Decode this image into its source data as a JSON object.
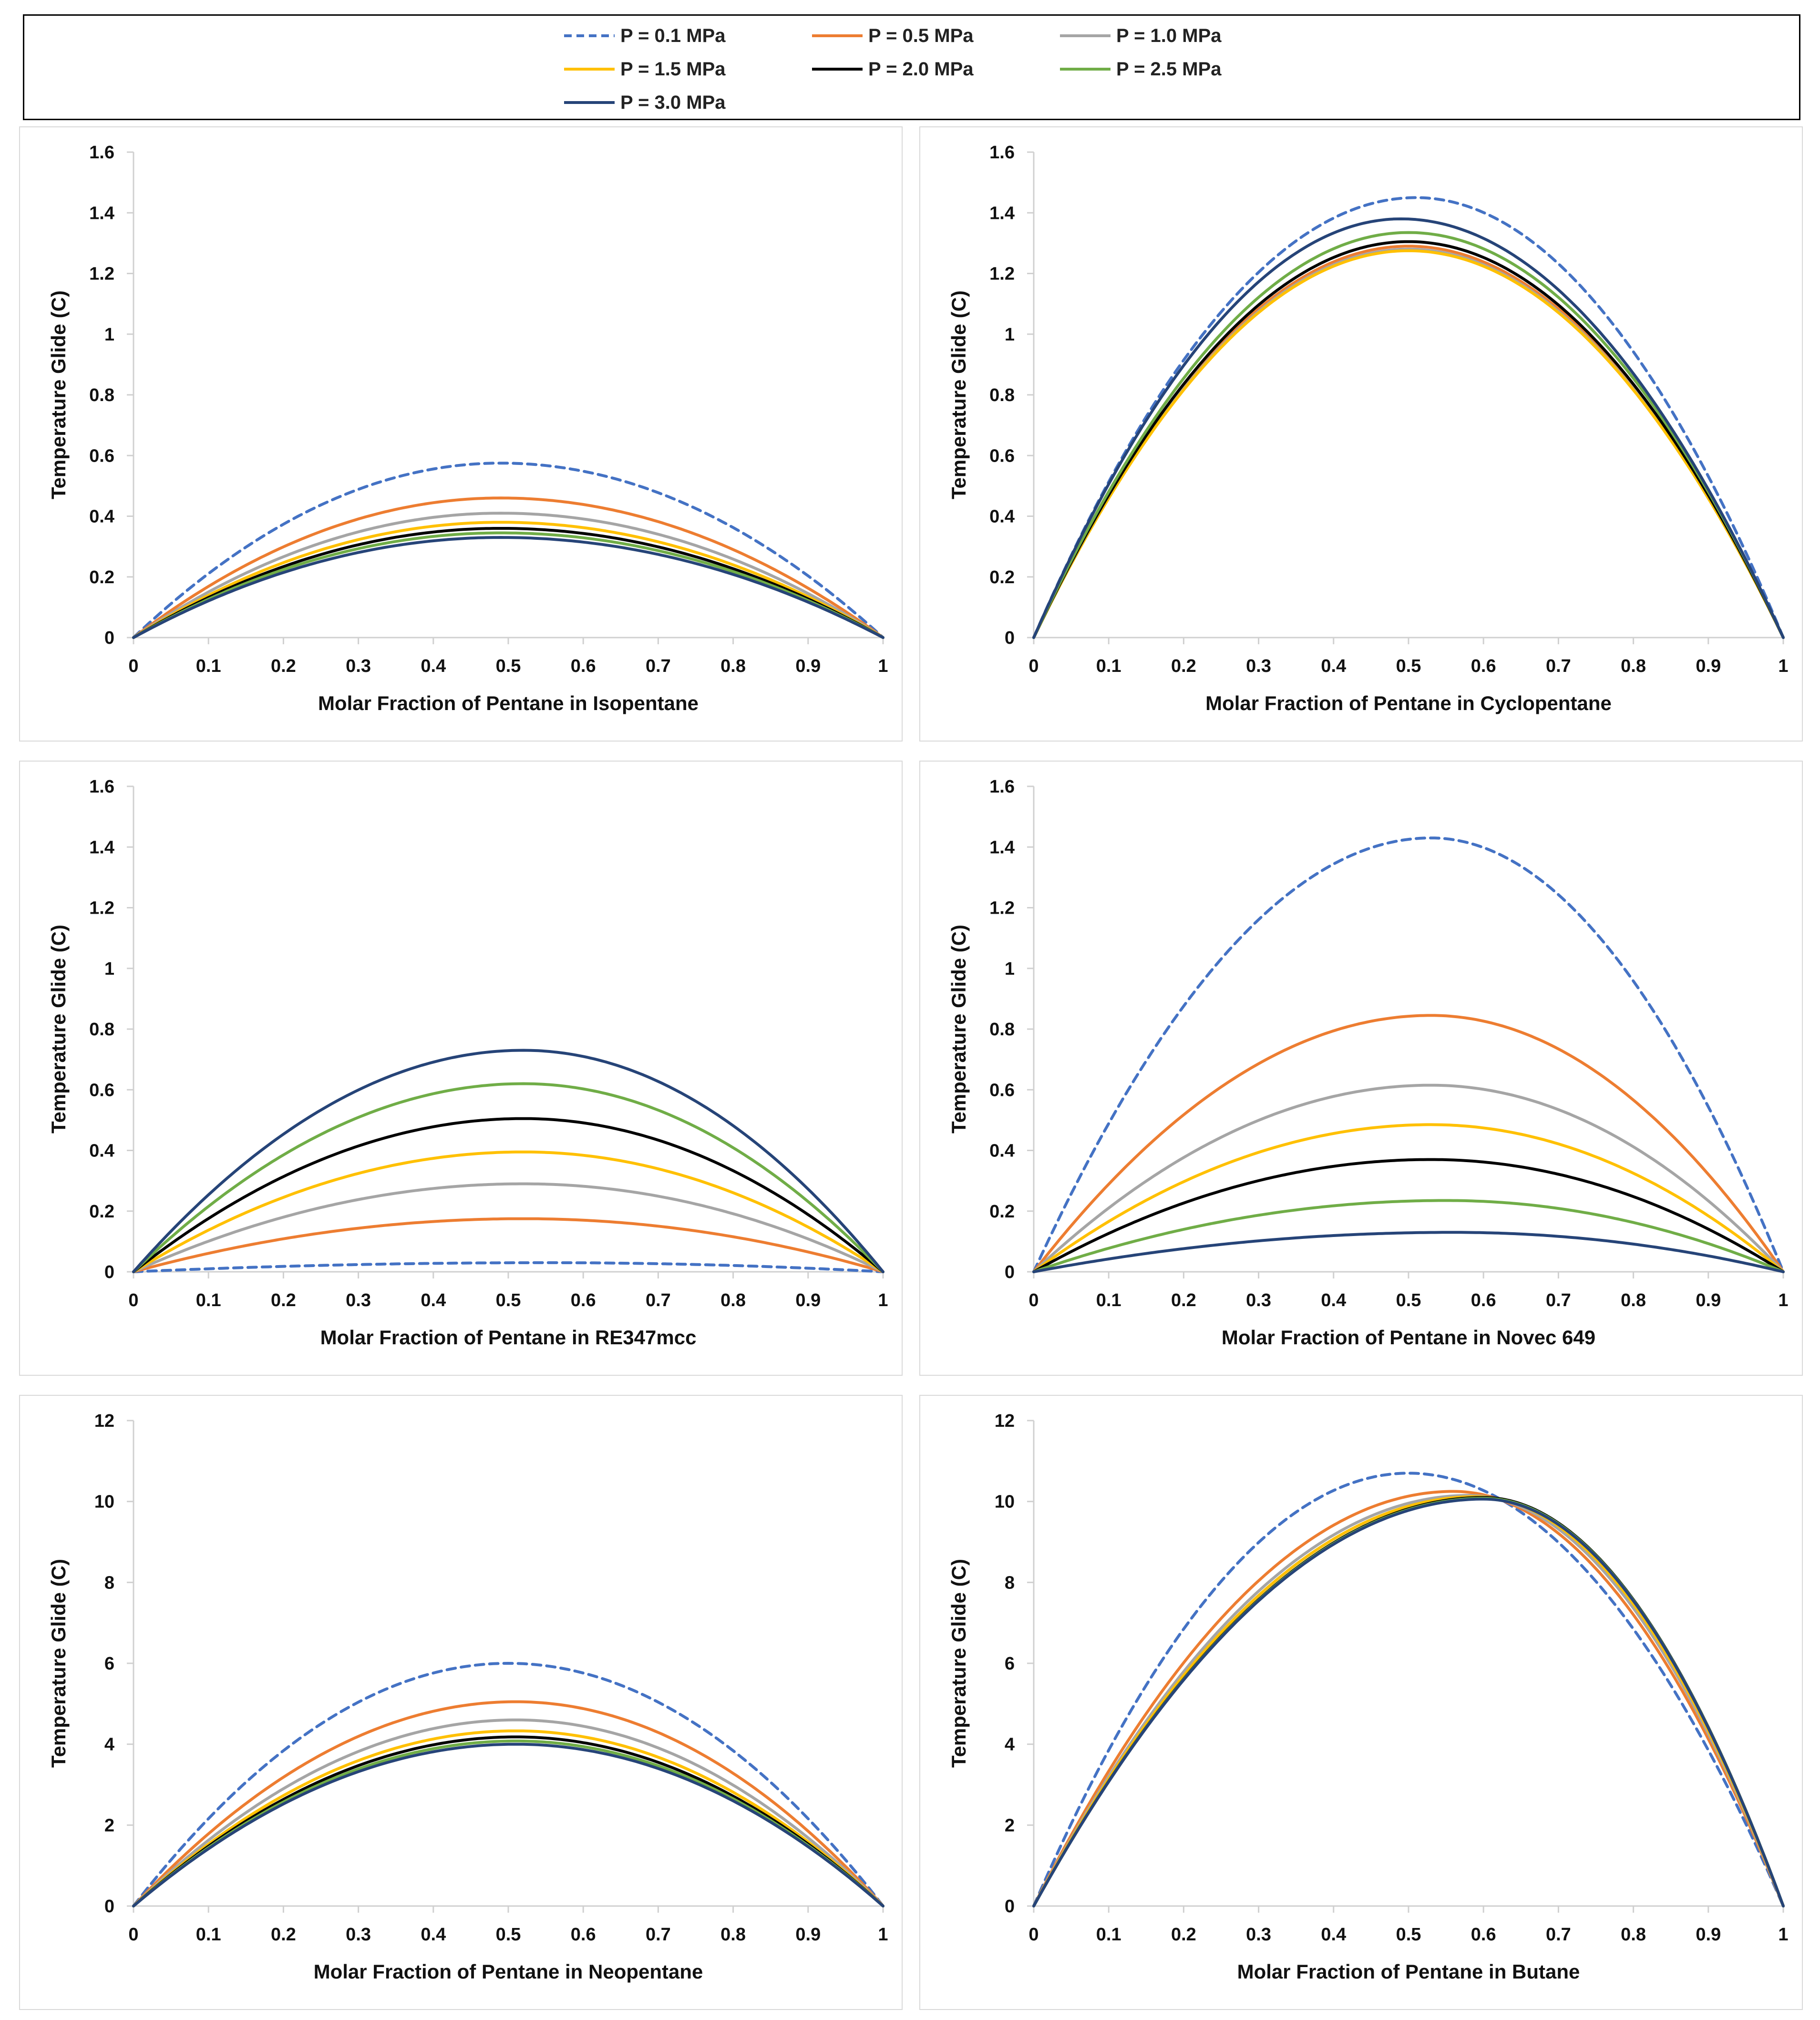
{
  "legend": {
    "items": [
      {
        "label": "P = 0.1 MPa",
        "color": "#4472C4",
        "dashed": true
      },
      {
        "label": "P = 0.5 MPa",
        "color": "#ED7D31",
        "dashed": false
      },
      {
        "label": "P = 1.0 MPa",
        "color": "#A5A5A5",
        "dashed": false
      },
      {
        "label": "P = 1.5 MPa",
        "color": "#FFC000",
        "dashed": false
      },
      {
        "label": "P = 2.0 MPa",
        "color": "#000000",
        "dashed": false
      },
      {
        "label": "P = 2.5 MPa",
        "color": "#70AD47",
        "dashed": false
      },
      {
        "label": "P = 3.0 MPa",
        "color": "#264478",
        "dashed": false
      }
    ]
  },
  "chart_data": [
    {
      "type": "line",
      "xlabel": "Molar Fraction of Pentane in Isopentane",
      "ylabel": "Temperature Glide (C)",
      "xlim": [
        0,
        1
      ],
      "ylim": [
        0,
        1.6
      ],
      "xticks": [
        "0",
        "0.1",
        "0.2",
        "0.3",
        "0.4",
        "0.5",
        "0.6",
        "0.7",
        "0.8",
        "0.9",
        "1"
      ],
      "yticks": [
        "0",
        "0.2",
        "0.4",
        "0.6",
        "0.8",
        "1",
        "1.2",
        "1.4",
        "1.6"
      ],
      "series": [
        {
          "name": "P = 0.1 MPa",
          "peak_x": 0.49,
          "peak_y": 0.575
        },
        {
          "name": "P = 0.5 MPa",
          "peak_x": 0.49,
          "peak_y": 0.46
        },
        {
          "name": "P = 1.0 MPa",
          "peak_x": 0.49,
          "peak_y": 0.41
        },
        {
          "name": "P = 1.5 MPa",
          "peak_x": 0.49,
          "peak_y": 0.38
        },
        {
          "name": "P = 2.0 MPa",
          "peak_x": 0.49,
          "peak_y": 0.36
        },
        {
          "name": "P = 2.5 MPa",
          "peak_x": 0.49,
          "peak_y": 0.345
        },
        {
          "name": "P = 3.0 MPa",
          "peak_x": 0.49,
          "peak_y": 0.33
        }
      ]
    },
    {
      "type": "line",
      "xlabel": "Molar Fraction of Pentane in Cyclopentane",
      "ylabel": "Temperature Glide (C)",
      "xlim": [
        0,
        1
      ],
      "ylim": [
        0,
        1.6
      ],
      "xticks": [
        "0",
        "0.1",
        "0.2",
        "0.3",
        "0.4",
        "0.5",
        "0.6",
        "0.7",
        "0.8",
        "0.9",
        "1"
      ],
      "yticks": [
        "0",
        "0.2",
        "0.4",
        "0.6",
        "0.8",
        "1",
        "1.2",
        "1.4",
        "1.6"
      ],
      "series": [
        {
          "name": "P = 0.1 MPa",
          "peak_x": 0.51,
          "peak_y": 1.45
        },
        {
          "name": "P = 0.5 MPa",
          "peak_x": 0.5,
          "peak_y": 1.29
        },
        {
          "name": "P = 1.0 MPa",
          "peak_x": 0.5,
          "peak_y": 1.28
        },
        {
          "name": "P = 1.5 MPa",
          "peak_x": 0.5,
          "peak_y": 1.275
        },
        {
          "name": "P = 2.0 MPa",
          "peak_x": 0.5,
          "peak_y": 1.305
        },
        {
          "name": "P = 2.5 MPa",
          "peak_x": 0.5,
          "peak_y": 1.335
        },
        {
          "name": "P = 3.0 MPa",
          "peak_x": 0.49,
          "peak_y": 1.38
        }
      ]
    },
    {
      "type": "line",
      "xlabel": "Molar Fraction of Pentane in RE347mcc",
      "ylabel": "Temperature Glide (C)",
      "xlim": [
        0,
        1
      ],
      "ylim": [
        0,
        1.6
      ],
      "xticks": [
        "0",
        "0.1",
        "0.2",
        "0.3",
        "0.4",
        "0.5",
        "0.6",
        "0.7",
        "0.8",
        "0.9",
        "1"
      ],
      "yticks": [
        "0",
        "0.2",
        "0.4",
        "0.6",
        "0.8",
        "1",
        "1.2",
        "1.4",
        "1.6"
      ],
      "series": [
        {
          "name": "P = 0.1 MPa",
          "peak_x": 0.55,
          "peak_y": 0.03
        },
        {
          "name": "P = 0.5 MPa",
          "peak_x": 0.52,
          "peak_y": 0.175
        },
        {
          "name": "P = 1.0 MPa",
          "peak_x": 0.52,
          "peak_y": 0.29
        },
        {
          "name": "P = 1.5 MPa",
          "peak_x": 0.52,
          "peak_y": 0.395
        },
        {
          "name": "P = 2.0 MPa",
          "peak_x": 0.52,
          "peak_y": 0.505
        },
        {
          "name": "P = 2.5 MPa",
          "peak_x": 0.52,
          "peak_y": 0.62
        },
        {
          "name": "P = 3.0 MPa",
          "peak_x": 0.52,
          "peak_y": 0.73
        }
      ]
    },
    {
      "type": "line",
      "xlabel": "Molar Fraction of Pentane in Novec 649",
      "ylabel": "Temperature Glide (C)",
      "xlim": [
        0,
        1
      ],
      "ylim": [
        0,
        1.6
      ],
      "xticks": [
        "0",
        "0.1",
        "0.2",
        "0.3",
        "0.4",
        "0.5",
        "0.6",
        "0.7",
        "0.8",
        "0.9",
        "1"
      ],
      "yticks": [
        "0",
        "0.2",
        "0.4",
        "0.6",
        "0.8",
        "1",
        "1.2",
        "1.4",
        "1.6"
      ],
      "series": [
        {
          "name": "P = 0.1 MPa",
          "peak_x": 0.53,
          "peak_y": 1.43
        },
        {
          "name": "P = 0.5 MPa",
          "peak_x": 0.53,
          "peak_y": 0.845
        },
        {
          "name": "P = 1.0 MPa",
          "peak_x": 0.53,
          "peak_y": 0.615
        },
        {
          "name": "P = 1.5 MPa",
          "peak_x": 0.53,
          "peak_y": 0.485
        },
        {
          "name": "P = 2.0 MPa",
          "peak_x": 0.53,
          "peak_y": 0.37
        },
        {
          "name": "P = 2.5 MPa",
          "peak_x": 0.55,
          "peak_y": 0.235
        },
        {
          "name": "P = 3.0 MPa",
          "peak_x": 0.56,
          "peak_y": 0.13
        }
      ]
    },
    {
      "type": "line",
      "xlabel": "Molar Fraction of Pentane in Neopentane",
      "ylabel": "Temperature Glide (C)",
      "xlim": [
        0,
        1
      ],
      "ylim": [
        0,
        12
      ],
      "xticks": [
        "0",
        "0.1",
        "0.2",
        "0.3",
        "0.4",
        "0.5",
        "0.6",
        "0.7",
        "0.8",
        "0.9",
        "1"
      ],
      "yticks": [
        "0",
        "2",
        "4",
        "6",
        "8",
        "10",
        "12"
      ],
      "series": [
        {
          "name": "P = 0.1 MPa",
          "peak_x": 0.5,
          "peak_y": 6.0
        },
        {
          "name": "P = 0.5 MPa",
          "peak_x": 0.51,
          "peak_y": 5.05
        },
        {
          "name": "P = 1.0 MPa",
          "peak_x": 0.51,
          "peak_y": 4.6
        },
        {
          "name": "P = 1.5 MPa",
          "peak_x": 0.51,
          "peak_y": 4.33
        },
        {
          "name": "P = 2.0 MPa",
          "peak_x": 0.51,
          "peak_y": 4.18
        },
        {
          "name": "P = 2.5 MPa",
          "peak_x": 0.51,
          "peak_y": 4.08
        },
        {
          "name": "P = 3.0 MPa",
          "peak_x": 0.51,
          "peak_y": 4.0
        }
      ]
    },
    {
      "type": "line",
      "xlabel": "Molar Fraction of Pentane in Butane",
      "ylabel": "Temperature Glide (C)",
      "xlim": [
        0,
        1
      ],
      "ylim": [
        0,
        12
      ],
      "xticks": [
        "0",
        "0.1",
        "0.2",
        "0.3",
        "0.4",
        "0.5",
        "0.6",
        "0.7",
        "0.8",
        "0.9",
        "1"
      ],
      "yticks": [
        "0",
        "2",
        "4",
        "6",
        "8",
        "10",
        "12"
      ],
      "series": [
        {
          "name": "P = 0.1 MPa",
          "peak_x": 0.5,
          "peak_y": 10.7
        },
        {
          "name": "P = 0.5 MPa",
          "peak_x": 0.56,
          "peak_y": 10.25
        },
        {
          "name": "P = 1.0 MPa",
          "peak_x": 0.58,
          "peak_y": 10.15
        },
        {
          "name": "P = 1.5 MPa",
          "peak_x": 0.59,
          "peak_y": 10.12
        },
        {
          "name": "P = 2.0 MPa",
          "peak_x": 0.6,
          "peak_y": 10.1
        },
        {
          "name": "P = 2.5 MPa",
          "peak_x": 0.6,
          "peak_y": 10.08
        },
        {
          "name": "P = 3.0 MPa",
          "peak_x": 0.6,
          "peak_y": 10.06
        }
      ]
    }
  ]
}
